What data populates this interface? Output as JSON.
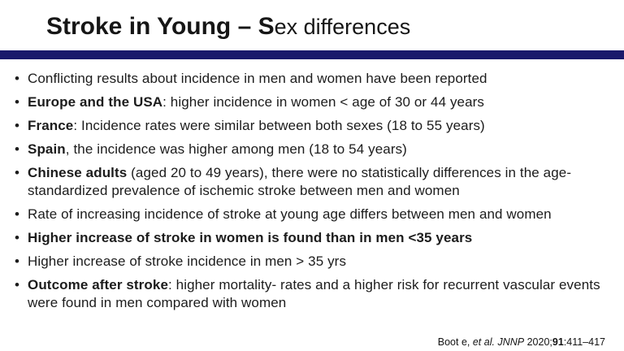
{
  "slide": {
    "title": {
      "bold_part": "Stroke in Young – S",
      "regular_part": "ex differences"
    },
    "divider_color": "#1a1a6b",
    "bullet_char": "•",
    "bullets": [
      {
        "segments": [
          {
            "t": "Conflicting results about incidence in men and women have been reported"
          }
        ]
      },
      {
        "segments": [
          {
            "t": "Europe and the USA",
            "b": true
          },
          {
            "t": ": higher incidence in women < age of 30 or 44 years"
          }
        ]
      },
      {
        "segments": [
          {
            "t": "France",
            "b": true
          },
          {
            "t": ": Incidence rates were similar between both sexes (18 to 55 years)"
          }
        ]
      },
      {
        "segments": [
          {
            "t": "Spain",
            "b": true
          },
          {
            "t": ", the incidence was higher among men (18 to 54 years)"
          }
        ]
      },
      {
        "segments": [
          {
            "t": "Chinese adults",
            "b": true
          },
          {
            "t": " (aged 20 to 49 years), there were no statistically differences in the age- standardized prevalence of ischemic stroke between men and women"
          }
        ]
      },
      {
        "segments": [
          {
            "t": "Rate of increasing incidence of stroke at young age differs between men and women"
          }
        ]
      },
      {
        "segments": [
          {
            "t": "Higher increase of stroke in women is found than in men <35 years",
            "b": true
          }
        ]
      },
      {
        "segments": [
          {
            "t": "Higher increase of stroke incidence in men > 35 yrs"
          }
        ]
      },
      {
        "segments": [
          {
            "t": "Outcome after stroke",
            "b": true
          },
          {
            "t": ": higher mortality- rates and a higher risk for recurrent vascular events were found in men compared with women"
          }
        ]
      }
    ],
    "citation": {
      "segments": [
        {
          "t": "Boot e, "
        },
        {
          "t": "et al.",
          "i": true
        },
        {
          "t": " "
        },
        {
          "t": "JNNP",
          "i": true
        },
        {
          "t": " 2020;"
        },
        {
          "t": "91",
          "b": true
        },
        {
          "t": ":411–417"
        }
      ]
    }
  }
}
